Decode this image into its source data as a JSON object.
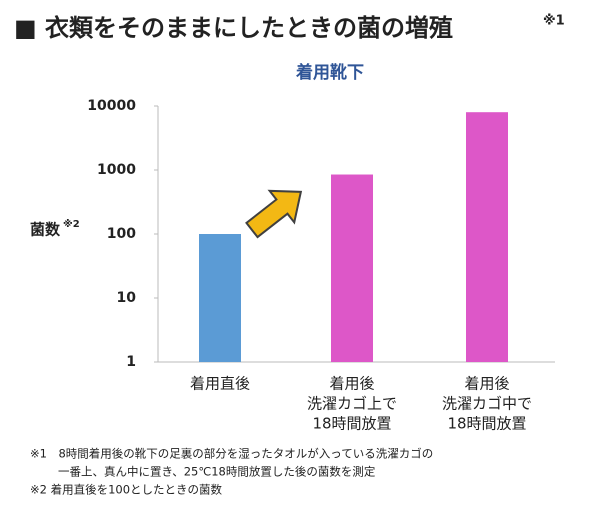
{
  "chart_data": {
    "type": "bar",
    "title": "■ 衣類をそのままにしたときの菌の増殖",
    "title_note": "※1",
    "subtitle": "着用靴下",
    "ylabel": "菌数",
    "ylabel_note": "※2",
    "categories": [
      [
        "着用直後"
      ],
      [
        "着用後",
        "洗濯カゴ上で",
        "18時間放置"
      ],
      [
        "着用後",
        "洗濯カゴ中で",
        "18時間放置"
      ]
    ],
    "values": [
      100,
      850,
      8000
    ],
    "colors": [
      "#5b9bd5",
      "#dd57c8",
      "#dd57c8"
    ],
    "log_scale": true,
    "ylim": [
      1,
      10000
    ],
    "yticks": [
      1,
      10,
      100,
      1000,
      10000
    ],
    "notes": [
      [
        "※1　8時間着用後の靴下の足裏の部分を湿ったタオルが入っている洗濯カゴの",
        "一番上、真ん中に置き、25℃18時間放置した後の菌数を測定"
      ],
      [
        "※2 着用直後を100としたときの菌数"
      ]
    ]
  }
}
